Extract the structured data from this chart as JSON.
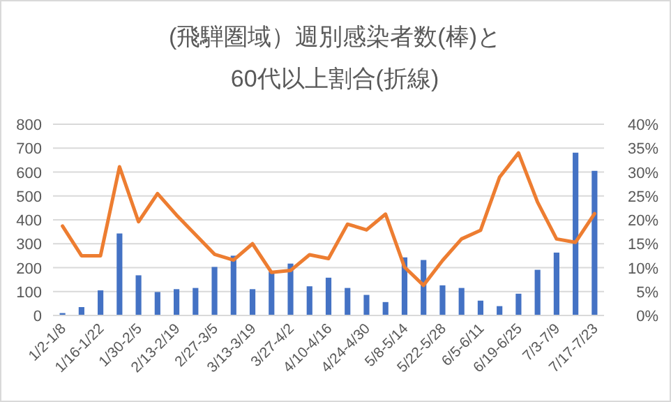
{
  "chart_data": {
    "type": "bar",
    "title": "(飛騨圏域）週別感染者数(棒)と\n60代以上割合(折線)",
    "categories": [
      "1/2-1/8",
      null,
      "1/16-1/22",
      null,
      "1/30-2/5",
      null,
      "2/13-2/19",
      null,
      "2/27-3/5",
      null,
      "3/13-3/19",
      null,
      "3/27-4/2",
      null,
      "4/10-4/16",
      null,
      "4/24-4/30",
      null,
      "5/8-5/14",
      null,
      "5/22-5/28",
      null,
      "6/5-6/11",
      null,
      "6/19-6/25",
      null,
      "7/3-7/9",
      null,
      "7/17-7/23"
    ],
    "series": [
      {
        "color": "#4472c4",
        "values": [
          10,
          35,
          105,
          343,
          168,
          98,
          110,
          115,
          203,
          250,
          110,
          183,
          217,
          122,
          158,
          115,
          86,
          56,
          243,
          232,
          126,
          115,
          62,
          39,
          91,
          191,
          263,
          681,
          605
        ]
      },
      {
        "type": "line",
        "axis": "y2",
        "color": "#ed7d31",
        "values": [
          18.7,
          12.5,
          12.5,
          31.1,
          19.6,
          25.5,
          21.0,
          16.9,
          12.8,
          11.6,
          15.0,
          9.0,
          9.4,
          12.7,
          11.9,
          19.1,
          17.9,
          21.2,
          10.1,
          6.3,
          11.5,
          16.0,
          17.8,
          28.9,
          34.0,
          23.7,
          16.0,
          15.3,
          21.3
        ]
      }
    ],
    "ylim": [
      0,
      800
    ],
    "yticks": [
      0,
      100,
      200,
      300,
      400,
      500,
      600,
      700,
      800
    ],
    "y2lim": [
      0,
      40
    ],
    "y2ticks": [
      {
        "value": 0,
        "label": "0%"
      },
      {
        "value": 5,
        "label": "5%"
      },
      {
        "value": 10,
        "label": "10%"
      },
      {
        "value": 15,
        "label": "15%"
      },
      {
        "value": 20,
        "label": "20%"
      },
      {
        "value": 25,
        "label": "25%"
      },
      {
        "value": 30,
        "label": "30%"
      },
      {
        "value": 35,
        "label": "35%"
      },
      {
        "value": 40,
        "label": "40%"
      }
    ],
    "grid": "y"
  }
}
